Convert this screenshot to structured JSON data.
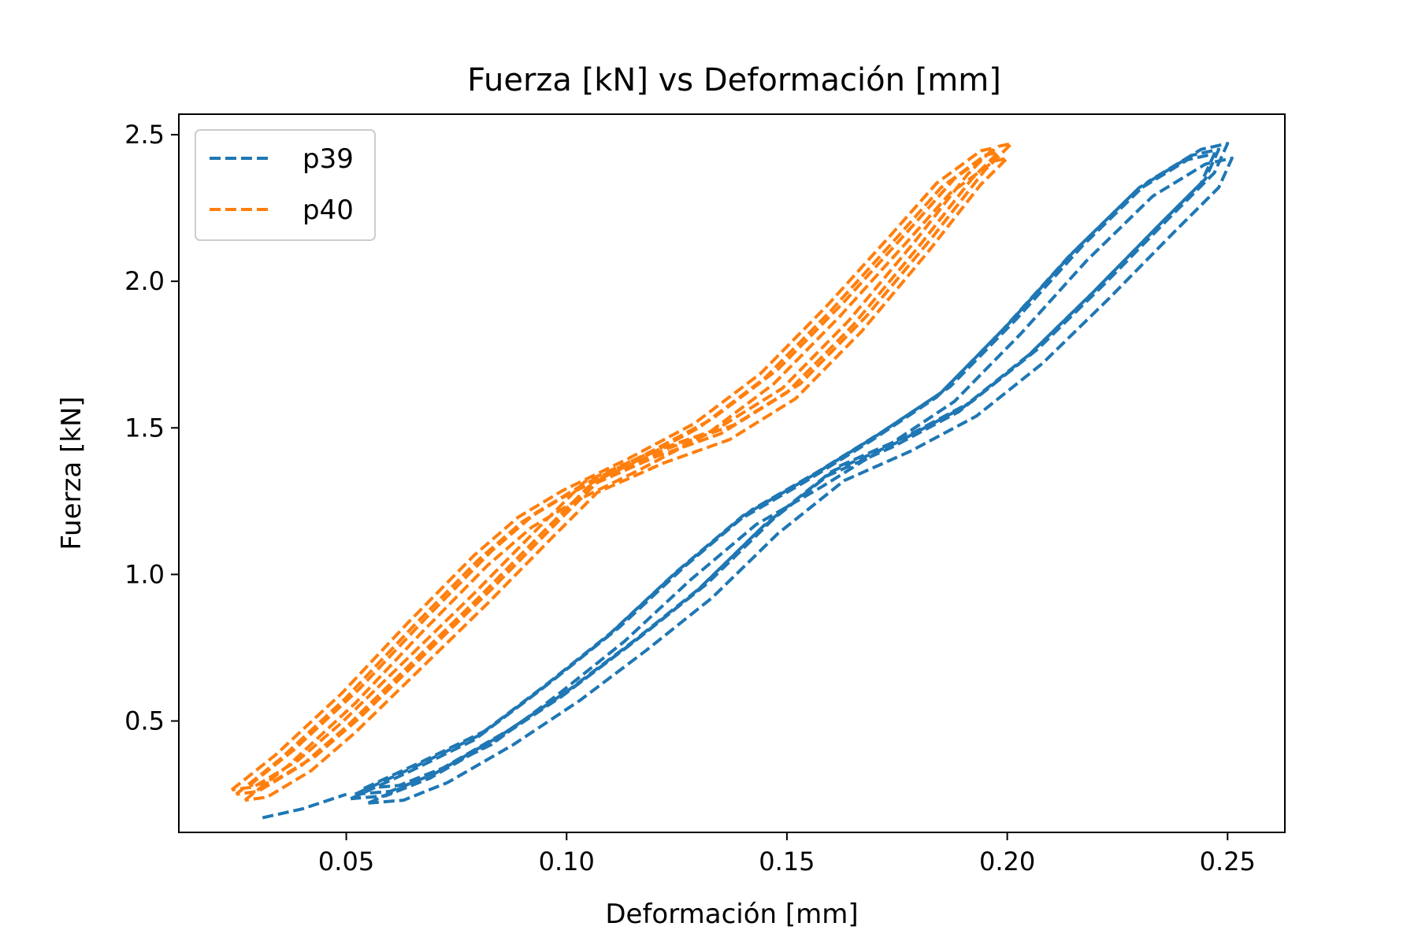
{
  "chart_data": {
    "type": "line",
    "title": "Fuerza [kN] vs Deformación [mm]",
    "xlabel": "Deformación [mm]",
    "ylabel": "Fuerza [kN]",
    "xlim": [
      0.012,
      0.263
    ],
    "ylim": [
      0.12,
      2.57
    ],
    "xticks": [
      {
        "value": 0.05,
        "label": "0.05"
      },
      {
        "value": 0.1,
        "label": "0.10"
      },
      {
        "value": 0.15,
        "label": "0.15"
      },
      {
        "value": 0.2,
        "label": "0.20"
      },
      {
        "value": 0.25,
        "label": "0.25"
      }
    ],
    "yticks": [
      {
        "value": 0.5,
        "label": "0.5"
      },
      {
        "value": 1.0,
        "label": "1.0"
      },
      {
        "value": 1.5,
        "label": "1.5"
      },
      {
        "value": 2.0,
        "label": "2.0"
      },
      {
        "value": 2.5,
        "label": "2.5"
      }
    ],
    "grid": false,
    "legend": {
      "position": "top-left"
    },
    "series": [
      {
        "name": "p39",
        "color": "#1f77b4",
        "line_style": "dashed",
        "loading": [
          [
            0.052,
            0.25
          ],
          [
            0.065,
            0.34
          ],
          [
            0.08,
            0.45
          ],
          [
            0.095,
            0.62
          ],
          [
            0.11,
            0.8
          ],
          [
            0.125,
            1.01
          ],
          [
            0.14,
            1.2
          ],
          [
            0.155,
            1.33
          ],
          [
            0.17,
            1.47
          ],
          [
            0.185,
            1.62
          ],
          [
            0.2,
            1.85
          ],
          [
            0.215,
            2.1
          ],
          [
            0.23,
            2.32
          ],
          [
            0.242,
            2.43
          ],
          [
            0.248,
            2.45
          ]
        ],
        "unloading": [
          [
            0.248,
            2.45
          ],
          [
            0.245,
            2.35
          ],
          [
            0.235,
            2.2
          ],
          [
            0.22,
            1.97
          ],
          [
            0.205,
            1.75
          ],
          [
            0.19,
            1.57
          ],
          [
            0.175,
            1.45
          ],
          [
            0.16,
            1.35
          ],
          [
            0.145,
            1.17
          ],
          [
            0.13,
            0.95
          ],
          [
            0.115,
            0.77
          ],
          [
            0.1,
            0.6
          ],
          [
            0.085,
            0.45
          ],
          [
            0.07,
            0.32
          ],
          [
            0.06,
            0.26
          ],
          [
            0.052,
            0.25
          ]
        ],
        "cycles": [
          {
            "dx": 0.0,
            "dy": 0.0
          },
          {
            "dx": 0.002,
            "dy": 0.02
          },
          {
            "dx": -0.001,
            "dy": -0.015
          },
          {
            "dx": 0.003,
            "dy": -0.03
          }
        ],
        "initial_segment": [
          [
            0.031,
            0.17
          ],
          [
            0.04,
            0.2
          ],
          [
            0.05,
            0.25
          ]
        ]
      },
      {
        "name": "p40",
        "color": "#ff7f0e",
        "line_style": "dashed",
        "loading": [
          [
            0.025,
            0.25
          ],
          [
            0.035,
            0.37
          ],
          [
            0.05,
            0.58
          ],
          [
            0.065,
            0.82
          ],
          [
            0.08,
            1.05
          ],
          [
            0.09,
            1.18
          ],
          [
            0.1,
            1.27
          ],
          [
            0.115,
            1.38
          ],
          [
            0.13,
            1.5
          ],
          [
            0.145,
            1.67
          ],
          [
            0.16,
            1.9
          ],
          [
            0.175,
            2.15
          ],
          [
            0.185,
            2.32
          ],
          [
            0.195,
            2.43
          ],
          [
            0.198,
            2.44
          ]
        ],
        "unloading": [
          [
            0.198,
            2.44
          ],
          [
            0.192,
            2.35
          ],
          [
            0.18,
            2.12
          ],
          [
            0.165,
            1.85
          ],
          [
            0.15,
            1.62
          ],
          [
            0.135,
            1.48
          ],
          [
            0.12,
            1.4
          ],
          [
            0.105,
            1.3
          ],
          [
            0.095,
            1.15
          ],
          [
            0.08,
            0.92
          ],
          [
            0.065,
            0.7
          ],
          [
            0.05,
            0.48
          ],
          [
            0.04,
            0.35
          ],
          [
            0.03,
            0.26
          ],
          [
            0.025,
            0.25
          ]
        ],
        "cycles": [
          {
            "dx": 0.0,
            "dy": 0.0
          },
          {
            "dx": 0.002,
            "dy": -0.02
          },
          {
            "dx": -0.001,
            "dy": 0.015
          },
          {
            "dx": 0.003,
            "dy": 0.03
          }
        ]
      }
    ]
  }
}
